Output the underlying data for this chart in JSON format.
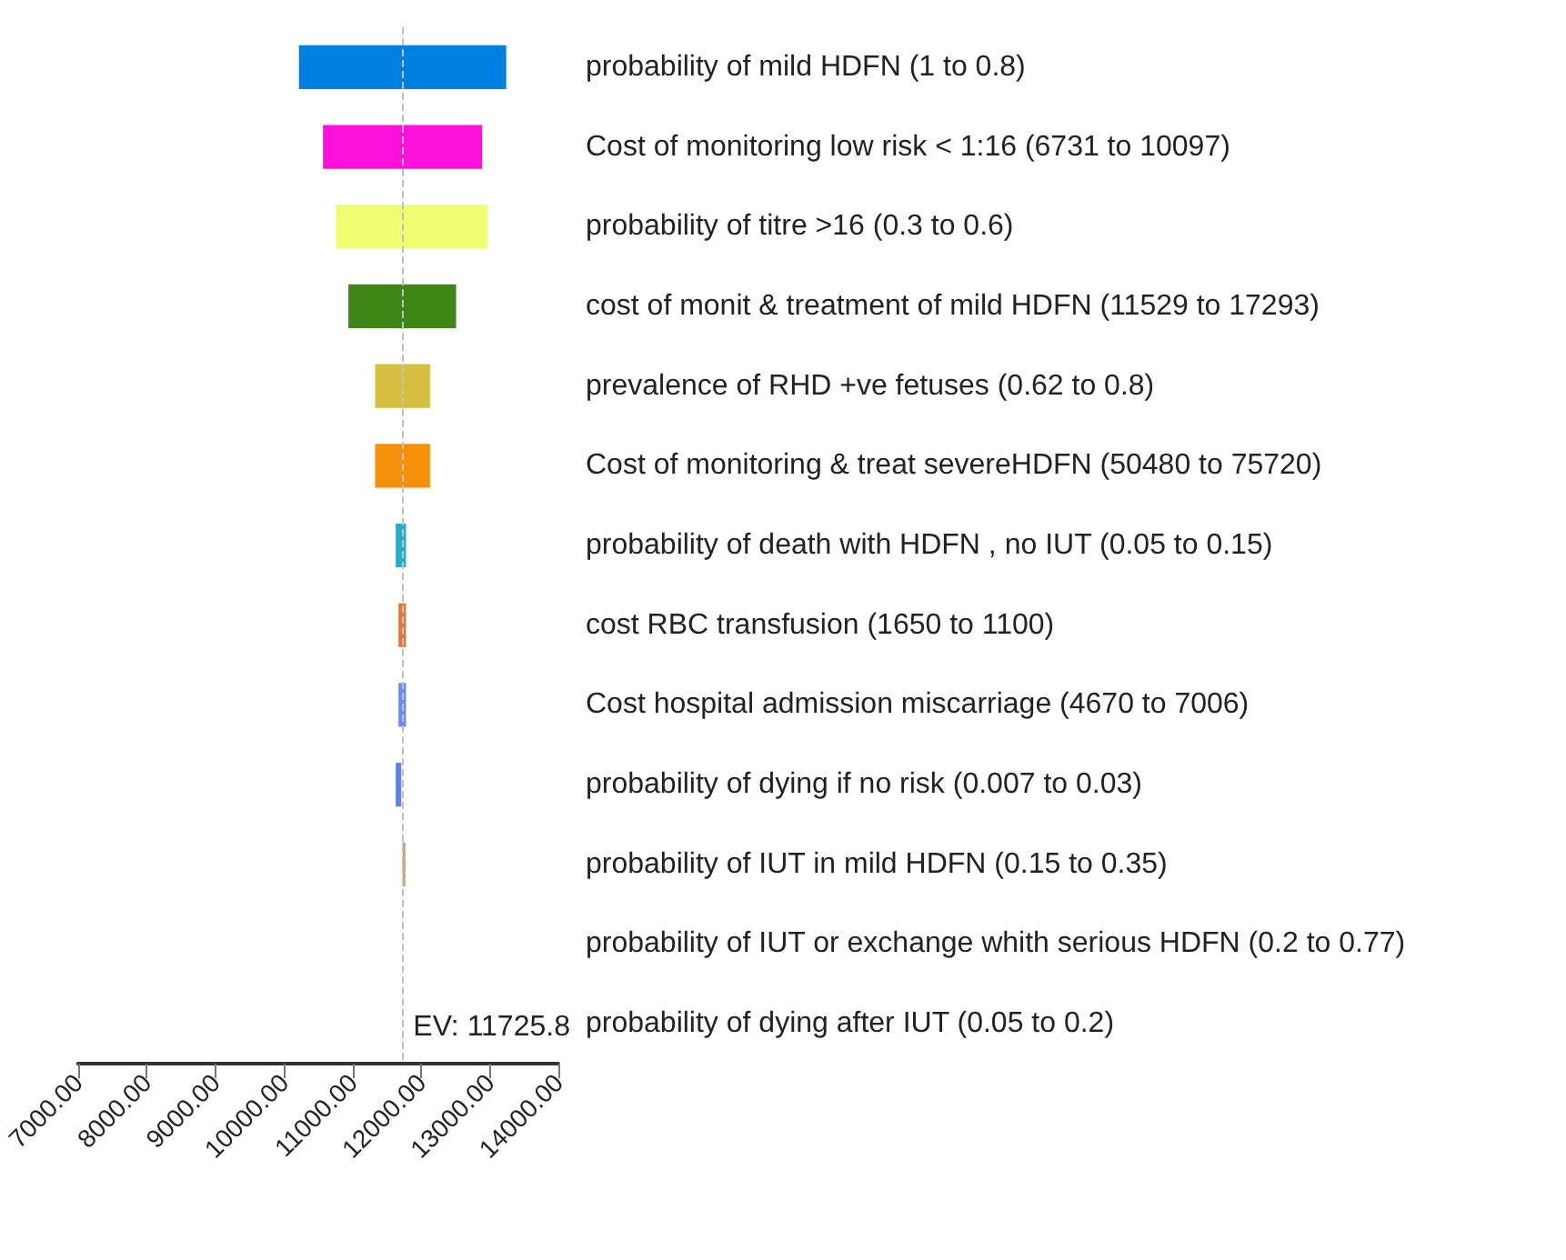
{
  "chart_data": {
    "type": "bar",
    "orientation": "horizontal",
    "categories": [
      "probability of mild HDFN (1 to 0.8)",
      "Cost of monitoring low risk < 1:16 (6731 to 10097)",
      "probability of titre >16 (0.3 to 0.6)",
      "cost of monit & treatment of mild HDFN (11529 to 17293)",
      "prevalence of RHD +ve fetuses (0.62 to 0.8)",
      "Cost of monitoring & treat severeHDFN (50480 to 75720)",
      "probability of death with HDFN , no IUT (0.05 to 0.15)",
      "cost RBC transfusion (1650 to 1100)",
      "Cost hospital admission miscarriage (4670 to 7006)",
      "probability of dying if no risk (0.007 to 0.03)",
      "probability of IUT in mild HDFN (0.15 to 0.35)",
      "probability of IUT or exchange whith serious HDFN (0.2 to 0.77)",
      "probability of dying after IUT (0.05 to 0.2)"
    ],
    "base": [
      10220,
      10570,
      10760,
      10940,
      11330,
      11330,
      11630,
      11670,
      11670,
      11630,
      11730,
      null,
      null
    ],
    "values": [
      3020,
      2320,
      2210,
      1570,
      800,
      800,
      150,
      110,
      110,
      80,
      40,
      null,
      null
    ],
    "colors": [
      "#0080e0",
      "#ff10dd",
      "#eeff70",
      "#3f8618",
      "#d6be40",
      "#f5900a",
      "#20b0c8",
      "#e07838",
      "#6a8af0",
      "#5a80f8",
      "#c8a060",
      null,
      null
    ],
    "xlim": [
      7000,
      14000
    ],
    "xticks": [
      {
        "value": 7000,
        "label": "7000.00"
      },
      {
        "value": 8000,
        "label": "8000.00"
      },
      {
        "value": 9000,
        "label": "9000.00"
      },
      {
        "value": 10000,
        "label": "10000.00"
      },
      {
        "value": 11000,
        "label": "11000.00"
      },
      {
        "value": 12000,
        "label": "12000.00"
      },
      {
        "value": 13000,
        "label": "13000.00"
      },
      {
        "value": 14000,
        "label": "14000.00"
      }
    ],
    "ref_lines": [
      {
        "axis": "x",
        "value": 11725.8,
        "label": "EV: 11725.8",
        "color": "#c0c0c0",
        "line_style": "dashed"
      }
    ],
    "grid": false
  }
}
